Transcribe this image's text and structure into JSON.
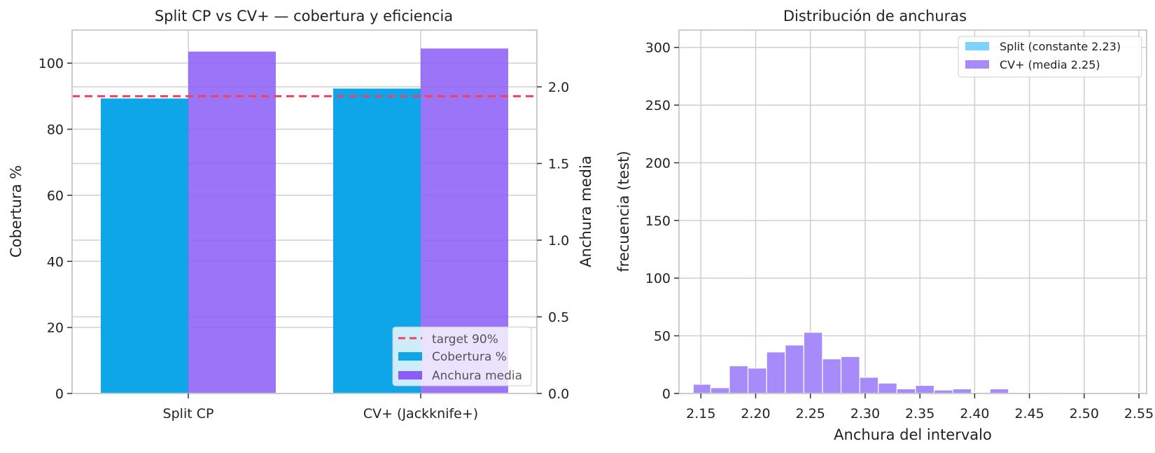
{
  "chart_data": [
    {
      "type": "bar",
      "title": "Split CP vs CV+ — cobertura y eficiencia",
      "categories": [
        "Split CP",
        "CV+ (Jackknife+)"
      ],
      "xlabel": "",
      "ylabel": "Cobertura %",
      "ylim": [
        0,
        110
      ],
      "yticks": [
        0,
        20,
        40,
        60,
        80,
        100
      ],
      "y2label": "Anchura media",
      "y2lim": [
        0,
        2.37
      ],
      "y2ticks": [
        "0.0",
        "0.5",
        "1.0",
        "1.5",
        "2.0"
      ],
      "grid": true,
      "legend_position": "bottom-right",
      "series": [
        {
          "name": "Cobertura %",
          "axis": "left",
          "values": [
            89.3,
            92.3
          ],
          "color": "#0ea5e9"
        },
        {
          "name": "Anchura media",
          "axis": "right",
          "values": [
            2.23,
            2.25
          ],
          "color": "#8b5cf6"
        }
      ],
      "reference_line": {
        "name": "target 90%",
        "value": 90,
        "axis": "left",
        "style": "dashed",
        "color": "#f43f5e"
      }
    },
    {
      "type": "histogram",
      "title": "Distribución de anchuras",
      "xlabel": "Anchura del intervalo",
      "ylabel": "frecuencia (test)",
      "xlim": [
        2.13,
        2.557
      ],
      "xticks": [
        "2.15",
        "2.20",
        "2.25",
        "2.30",
        "2.35",
        "2.40",
        "2.45",
        "2.50",
        "2.55"
      ],
      "ylim": [
        0,
        315
      ],
      "yticks": [
        0,
        50,
        100,
        150,
        200,
        250,
        300
      ],
      "grid": true,
      "legend_position": "top-right",
      "series": [
        {
          "name": "Split (constante 2.23)",
          "color": "#7dd3fc",
          "bins": []
        },
        {
          "name": "CV+ (media 2.25)",
          "color": "#a78bfa",
          "bins": [
            {
              "x0": 2.143,
              "x1": 2.159,
              "count": 8
            },
            {
              "x0": 2.159,
              "x1": 2.176,
              "count": 5
            },
            {
              "x0": 2.176,
              "x1": 2.193,
              "count": 24
            },
            {
              "x0": 2.193,
              "x1": 2.21,
              "count": 22
            },
            {
              "x0": 2.21,
              "x1": 2.227,
              "count": 36
            },
            {
              "x0": 2.227,
              "x1": 2.244,
              "count": 42
            },
            {
              "x0": 2.244,
              "x1": 2.261,
              "count": 53
            },
            {
              "x0": 2.261,
              "x1": 2.278,
              "count": 30
            },
            {
              "x0": 2.278,
              "x1": 2.295,
              "count": 32
            },
            {
              "x0": 2.295,
              "x1": 2.312,
              "count": 14
            },
            {
              "x0": 2.312,
              "x1": 2.329,
              "count": 9
            },
            {
              "x0": 2.329,
              "x1": 2.346,
              "count": 4
            },
            {
              "x0": 2.346,
              "x1": 2.363,
              "count": 7
            },
            {
              "x0": 2.363,
              "x1": 2.38,
              "count": 3
            },
            {
              "x0": 2.38,
              "x1": 2.397,
              "count": 4
            },
            {
              "x0": 2.397,
              "x1": 2.414,
              "count": 1
            },
            {
              "x0": 2.414,
              "x1": 2.431,
              "count": 4
            },
            {
              "x0": 2.465,
              "x1": 2.482,
              "count": 1
            },
            {
              "x0": 2.533,
              "x1": 2.55,
              "count": 1
            }
          ]
        }
      ]
    }
  ]
}
